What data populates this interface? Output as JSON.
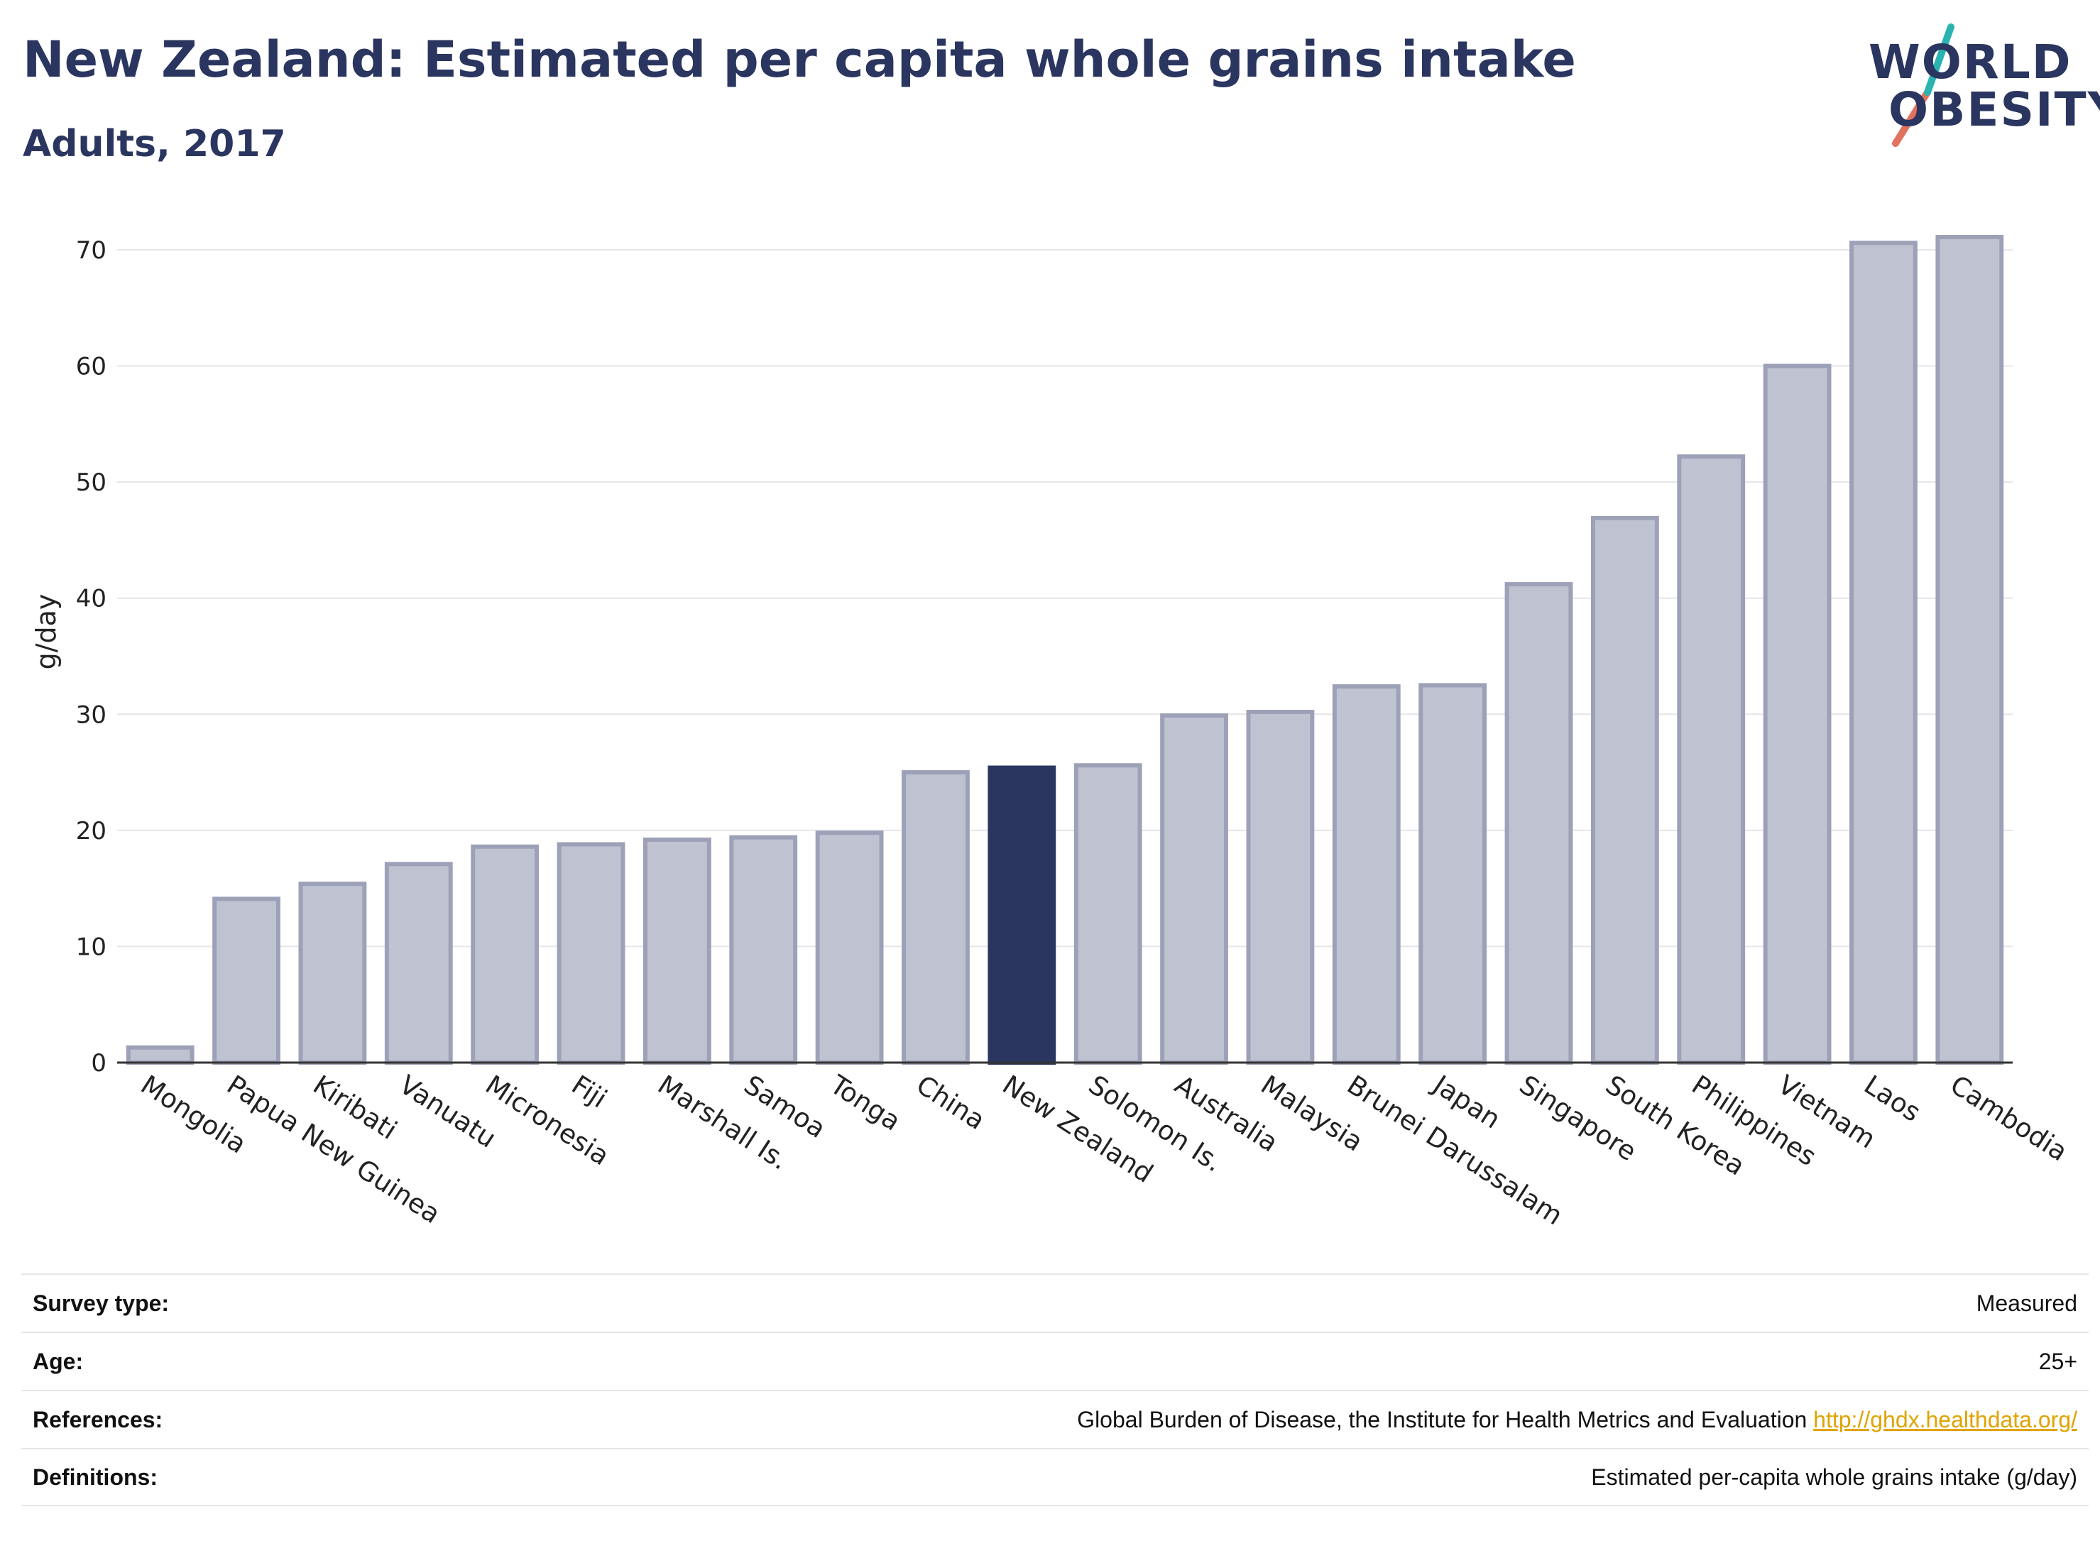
{
  "header": {
    "title": "New Zealand: Estimated per capita whole grains intake",
    "subtitle": "Adults, 2017"
  },
  "logo": {
    "line1": "WORLD",
    "line2": "OBESITY",
    "colors": {
      "text": "#2a3560",
      "slash_top": "#2bb3b1",
      "slash_bottom": "#e0725e"
    }
  },
  "chart_data": {
    "type": "bar",
    "ylabel": "g/day",
    "ylim": [
      0,
      74
    ],
    "yticks": [
      0,
      10,
      20,
      30,
      40,
      50,
      60,
      70
    ],
    "grid": true,
    "highlight": "New Zealand",
    "colors": {
      "bar": "#bfc2d0",
      "bar_border": "#9da1b8",
      "highlight": "#2a3560",
      "grid": "#e6e6ea"
    },
    "categories": [
      "Mongolia",
      "Papua New Guinea",
      "Kiribati",
      "Vanuatu",
      "Micronesia",
      "Fiji",
      "Marshall Is.",
      "Samoa",
      "Tonga",
      "China",
      "New Zealand",
      "Solomon Is.",
      "Australia",
      "Malaysia",
      "Brunei Darussalam",
      "Japan",
      "Singapore",
      "South Korea",
      "Philippines",
      "Vietnam",
      "Laos",
      "Cambodia"
    ],
    "values": [
      1.3,
      14.1,
      15.4,
      17.1,
      18.6,
      18.8,
      19.2,
      19.4,
      19.8,
      25.0,
      25.4,
      25.6,
      29.9,
      30.2,
      32.4,
      32.5,
      41.2,
      46.9,
      52.2,
      60.0,
      70.6,
      71.1
    ]
  },
  "info": [
    {
      "label": "Survey type:",
      "value": "Measured"
    },
    {
      "label": "Age:",
      "value": "25+"
    },
    {
      "label": "References:",
      "value": "Global Burden of Disease, the Institute for Health Metrics and Evaluation",
      "link": "http://ghdx.healthdata.org/"
    },
    {
      "label": "Definitions:",
      "value": "Estimated per-capita whole grains intake (g/day)"
    }
  ]
}
